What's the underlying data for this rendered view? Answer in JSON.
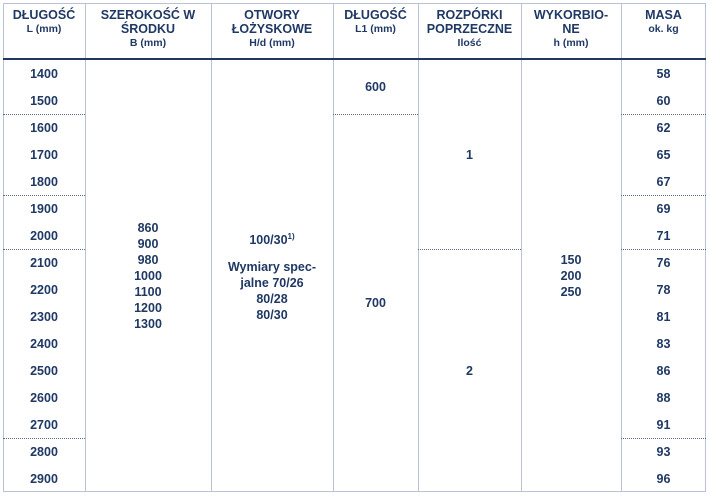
{
  "header": {
    "columns": [
      {
        "title": [
          "DŁUGOŚĆ"
        ],
        "unit": "L (mm)"
      },
      {
        "title": [
          "SZEROKOŚĆ W",
          "ŚRODKU"
        ],
        "unit": "B (mm)"
      },
      {
        "title": [
          "OTWORY",
          "ŁOŻYSKOWE"
        ],
        "unit": "H/d (mm)"
      },
      {
        "title": [
          "DŁUGOŚĆ"
        ],
        "unit": "L1 (mm)"
      },
      {
        "title": [
          "ROZPÓRKI",
          "POPRZECZNE"
        ],
        "unit": "Ilość"
      },
      {
        "title": [
          "WYKORBIO-",
          "NE"
        ],
        "unit": "h (mm)"
      },
      {
        "title": [
          "MASA"
        ],
        "unit": "ok. kg"
      }
    ]
  },
  "table": {
    "lengths": [
      1400,
      1500,
      1600,
      1700,
      1800,
      1900,
      2000,
      2100,
      2200,
      2300,
      2400,
      2500,
      2600,
      2700,
      2800,
      2900
    ],
    "masses": [
      58,
      60,
      62,
      65,
      67,
      69,
      71,
      76,
      78,
      81,
      83,
      86,
      88,
      91,
      93,
      96
    ],
    "widths": [
      860,
      900,
      980,
      1000,
      1100,
      1200,
      1300
    ],
    "bearing": {
      "main": "100/30",
      "footnote": "1)",
      "special": [
        "Wymiary spec-",
        "jalne 70/26",
        "80/28",
        "80/30"
      ]
    },
    "l1": [
      600,
      700
    ],
    "crossbars": [
      1,
      2
    ],
    "cranks": [
      150,
      200,
      250
    ]
  }
}
